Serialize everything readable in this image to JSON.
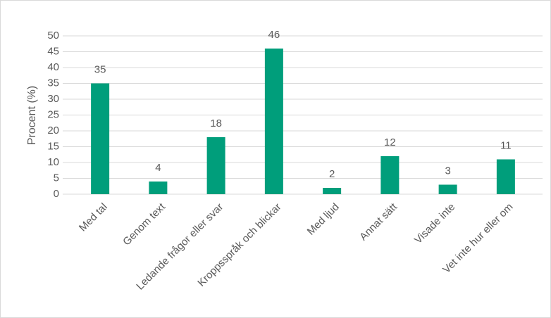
{
  "chart_data": {
    "type": "bar",
    "y_label": "Procent (%)",
    "categories": [
      "Med tal",
      "Genom text",
      "Ledande frågor eller svar",
      "Kroppsspråk och blickar",
      "Med ljud",
      "Annat sätt",
      "Visade inte",
      "Vet inte hur eller om"
    ],
    "values": [
      35,
      4,
      18,
      46,
      2,
      12,
      3,
      11
    ],
    "color": "#009e7b",
    "ylim": [
      0,
      50
    ],
    "yticks": [
      0,
      5,
      10,
      15,
      20,
      25,
      30,
      35,
      40,
      45,
      50
    ],
    "grid": true,
    "data_labels": true
  }
}
